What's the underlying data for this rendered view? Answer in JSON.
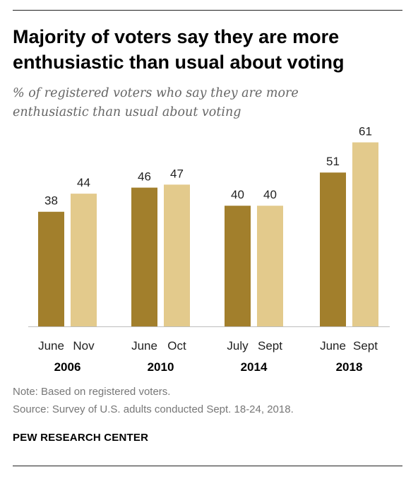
{
  "title_line1": "Majority of voters say they are more",
  "title_line2": "enthusiastic than usual about voting",
  "subtitle_line1": "% of registered voters who say they are more",
  "subtitle_line2": "enthusiastic than usual about voting",
  "note": "Note: Based on registered voters.",
  "source": "Source: Survey of U.S. adults conducted Sept. 18-24, 2018.",
  "brand": "PEW RESEARCH CENTER",
  "colors": {
    "first_survey": "#a27f2c",
    "second_survey": "#e3ca8c"
  },
  "chart_data": {
    "type": "bar",
    "title": "Majority of voters say they are more enthusiastic than usual about voting",
    "subtitle": "% of registered voters who say they are more enthusiastic than usual about voting",
    "ylim": [
      0,
      70
    ],
    "grid": false,
    "groups": [
      {
        "year": "2006",
        "bars": [
          {
            "label": "June",
            "value": 38
          },
          {
            "label": "Nov",
            "value": 44
          }
        ]
      },
      {
        "year": "2010",
        "bars": [
          {
            "label": "June",
            "value": 46
          },
          {
            "label": "Oct",
            "value": 47
          }
        ]
      },
      {
        "year": "2014",
        "bars": [
          {
            "label": "July",
            "value": 40
          },
          {
            "label": "Sept",
            "value": 40
          }
        ]
      },
      {
        "year": "2018",
        "bars": [
          {
            "label": "June",
            "value": 51
          },
          {
            "label": "Sept",
            "value": 61
          }
        ]
      }
    ]
  }
}
